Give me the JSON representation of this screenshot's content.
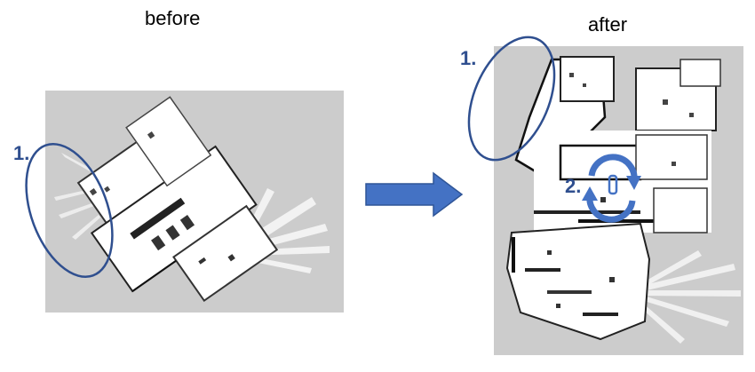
{
  "labels": {
    "before": "before",
    "after": "after"
  },
  "markers": {
    "before_1": "1.",
    "after_1": "1.",
    "after_2": "2."
  },
  "colors": {
    "accent": "#2f4f8f",
    "arrow": "#4472c4",
    "map_background": "#cccccc",
    "free_space": "#ffffff",
    "obstacles": "#111111"
  },
  "icons": {
    "transition": "right-arrow-icon",
    "loop_closure": "circular-refresh-icon"
  }
}
